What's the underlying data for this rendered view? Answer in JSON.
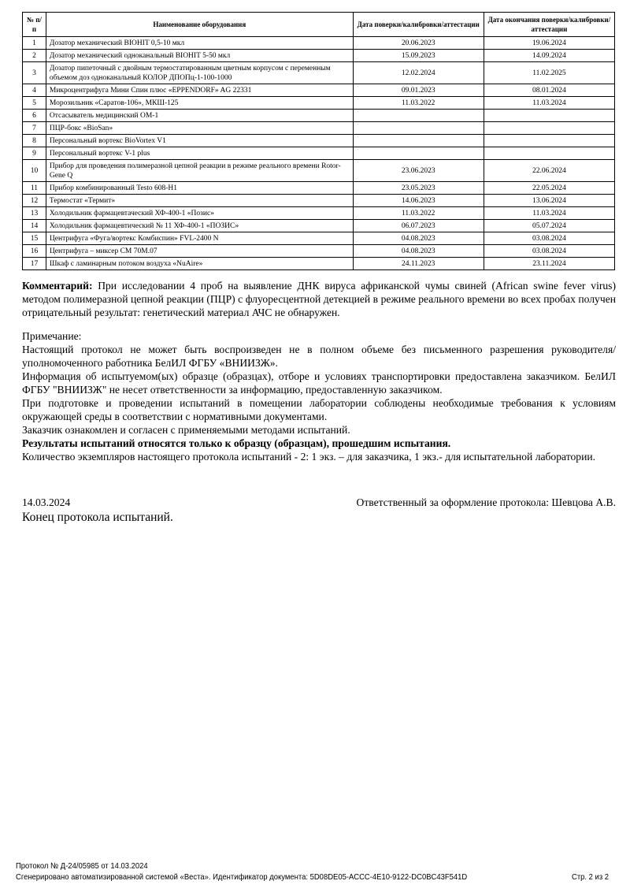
{
  "table": {
    "headers": [
      "№ п/п",
      "Наименование оборудования",
      "Дата поверки/калибровки/аттестации",
      "Дата окончания поверки/калибровки/аттестации"
    ],
    "rows": [
      {
        "n": "1",
        "name": "Дозатор механический BIOHIT 0,5-10 мкл",
        "date": "20.06.2023",
        "end": "19.06.2024"
      },
      {
        "n": "2",
        "name": "Дозатор механический одноканальный BIOHIT 5-50 мкл",
        "date": "15.09.2023",
        "end": "14.09.2024"
      },
      {
        "n": "3",
        "name": "Дозатор пипеточный с двойным термостатированным цветным корпусом с переменным объемом доз одноканальный КОЛОР ДПОПц-1-100-1000",
        "date": "12.02.2024",
        "end": "11.02.2025"
      },
      {
        "n": "4",
        "name": "Микроцентрифуга Мини Спин плюс «EPPENDORF» AG 22331",
        "date": "09.01.2023",
        "end": "08.01.2024"
      },
      {
        "n": "5",
        "name": "Морозильник «Саратов-106», МКШ-125",
        "date": "11.03.2022",
        "end": "11.03.2024"
      },
      {
        "n": "6",
        "name": "Отсасыватель медицинский ОМ-1",
        "date": "",
        "end": ""
      },
      {
        "n": "7",
        "name": "ПЦР-бокс «BioSan»",
        "date": "",
        "end": ""
      },
      {
        "n": "8",
        "name": "Персональный вортекс BioVortex V1",
        "date": "",
        "end": ""
      },
      {
        "n": "9",
        "name": "Персональный вортекс V-1 plus",
        "date": "",
        "end": ""
      },
      {
        "n": "10",
        "name": "Прибор для проведения полимеразной цепной реакции в режиме реального времени Rotor-Gene Q",
        "date": "23.06.2023",
        "end": "22.06.2024"
      },
      {
        "n": "11",
        "name": "Прибор комбинированный Testo 608-H1",
        "date": "23.05.2023",
        "end": "22.05.2024"
      },
      {
        "n": "12",
        "name": "Термостат «Термит»",
        "date": "14.06.2023",
        "end": "13.06.2024"
      },
      {
        "n": "13",
        "name": "Холодильник фармацевтаческий ХФ-400-1 «Позис»",
        "date": "11.03.2022",
        "end": "11.03.2024"
      },
      {
        "n": "14",
        "name": "Холодильник фармацевтический № 11 ХФ-400-1 «ПОЗИС»",
        "date": "06.07.2023",
        "end": "05.07.2024"
      },
      {
        "n": "15",
        "name": "Центрифуга «Фуга/вортекс Комбиспин» FVL-2400 N",
        "date": "04.08.2023",
        "end": "03.08.2024"
      },
      {
        "n": "16",
        "name": "Центрифуга – миксер СМ 70М.07",
        "date": "04.08.2023",
        "end": "03.08.2024"
      },
      {
        "n": "17",
        "name": "Шкаф с ламинарным потоком воздуха «NuAire»",
        "date": "24.11.2023",
        "end": "23.11.2024"
      }
    ]
  },
  "comment": {
    "label": "Комментарий:",
    "text": " При исследовании 4 проб на выявление ДНК вируса африканской чумы свиней (African swine fever virus) методом полимеразной цепной реакции (ПЦР) с флуоресцентной детекцией в режиме реального времени во всех пробах получен отрицательный результат: генетический материал АЧС не обнаружен."
  },
  "note": {
    "title": "Примечание:",
    "p1": "Настоящий протокол не может быть воспроизведен не в полном объеме без письменного разрешения руководителя/уполномоченного работника БелИЛ ФГБУ «ВНИИЗЖ».",
    "p2": "Информация об испытуемом(ых) образце (образцах), отборе и условиях транспортировки предоставлена заказчиком. БелИЛ ФГБУ \"ВНИИЗЖ\" не несет ответственности за информацию, предоставленную заказчиком.",
    "p3": "При подготовке и проведении испытаний в помещении лаборатории соблюдены необходимые требования к условиям окружающей среды в соответствии с нормативными документами.",
    "p4": "Заказчик ознакомлен и согласен с применяемыми методами испытаний.",
    "p5": "Результаты испытаний относятся только к образцу (образцам), прошедшим испытания.",
    "p6": "Количество экземпляров настоящего протокола испытаний - 2: 1 экз. – для заказчика, 1 экз.- для испытательной лаборатории."
  },
  "sign": {
    "date": "14.03.2024",
    "responsible": "Ответственный за оформление протокола: Шевцова А.В.",
    "end": "Конец протокола испытаний."
  },
  "footer": {
    "protocol": "Протокол № Д-24/05985 от 14.03.2024",
    "generated": "Сгенерировано автоматизированной системой «Веста». Идентификатор документа: 5D08DE05-ACCC-4E10-9122-DC0BC43F541D",
    "page": "Стр. 2 из 2"
  }
}
